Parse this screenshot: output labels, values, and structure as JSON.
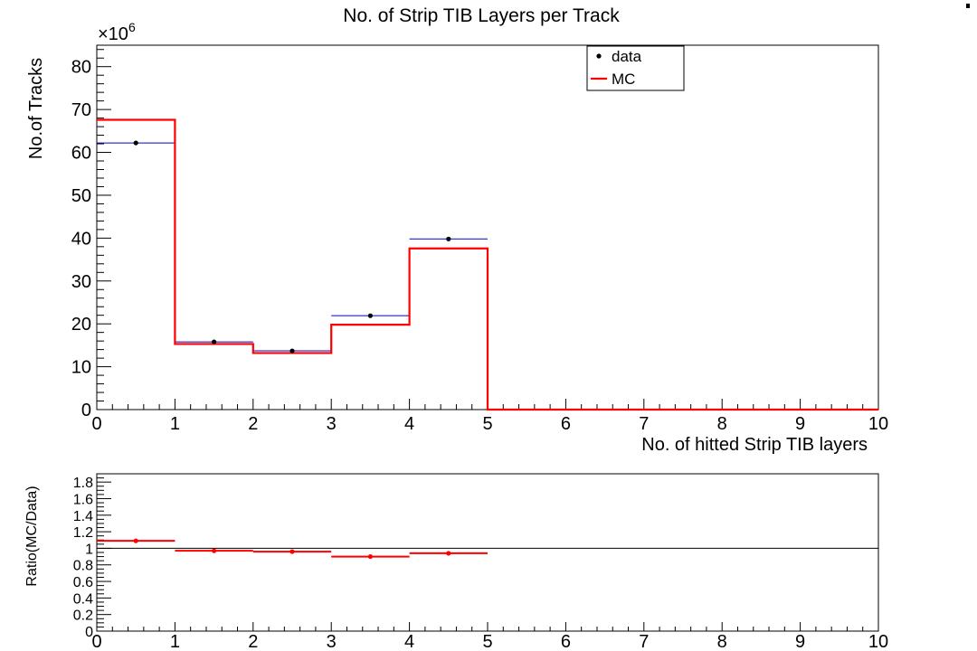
{
  "chart_data": [
    {
      "type": "histogram",
      "title": "No. of Strip TIB Layers per Track",
      "xlabel": "No. of hitted Strip TIB layers",
      "ylabel": "No.of Tracks",
      "y_exponent_label": "×10",
      "y_exponent_power": "6",
      "xlim": [
        0,
        10
      ],
      "ylim": [
        0,
        85
      ],
      "x_ticks": [
        "0",
        "1",
        "2",
        "3",
        "4",
        "5",
        "6",
        "7",
        "8",
        "9",
        "10"
      ],
      "y_ticks": [
        "0",
        "10",
        "20",
        "30",
        "40",
        "50",
        "60",
        "70",
        "80"
      ],
      "y_tick_values": [
        0,
        10,
        20,
        30,
        40,
        50,
        60,
        70,
        80
      ],
      "bin_edges": [
        0,
        1,
        2,
        3,
        4,
        5,
        6,
        7,
        8,
        9,
        10
      ],
      "legend": {
        "entries": [
          "data",
          "MC"
        ],
        "position": "top-right"
      },
      "series": [
        {
          "name": "data",
          "style": "markers",
          "color": "#000000",
          "bar_color": "#0000cc",
          "values": [
            62.2,
            15.8,
            13.7,
            21.9,
            39.8,
            0,
            0,
            0,
            0,
            0
          ]
        },
        {
          "name": "MC",
          "style": "step",
          "color": "#ff0000",
          "values": [
            67.6,
            15.3,
            13.2,
            19.8,
            37.6,
            0,
            0,
            0,
            0,
            0
          ]
        }
      ]
    },
    {
      "type": "ratio",
      "ylabel": "Ratio(MC/Data)",
      "xlim": [
        0,
        10
      ],
      "ylim": [
        0,
        1.9
      ],
      "x_ticks": [
        "0",
        "1",
        "2",
        "3",
        "4",
        "5",
        "6",
        "7",
        "8",
        "9",
        "10"
      ],
      "y_ticks": [
        "0",
        "0.2",
        "0.4",
        "0.6",
        "0.8",
        "1",
        "1.2",
        "1.4",
        "1.6",
        "1.8"
      ],
      "y_tick_values": [
        0,
        0.2,
        0.4,
        0.6,
        0.8,
        1,
        1.2,
        1.4,
        1.6,
        1.8
      ],
      "reference_line": 1,
      "color": "#ff0000",
      "x": [
        0.5,
        1.5,
        2.5,
        3.5,
        4.5
      ],
      "values": [
        1.09,
        0.97,
        0.96,
        0.9,
        0.94
      ]
    }
  ]
}
